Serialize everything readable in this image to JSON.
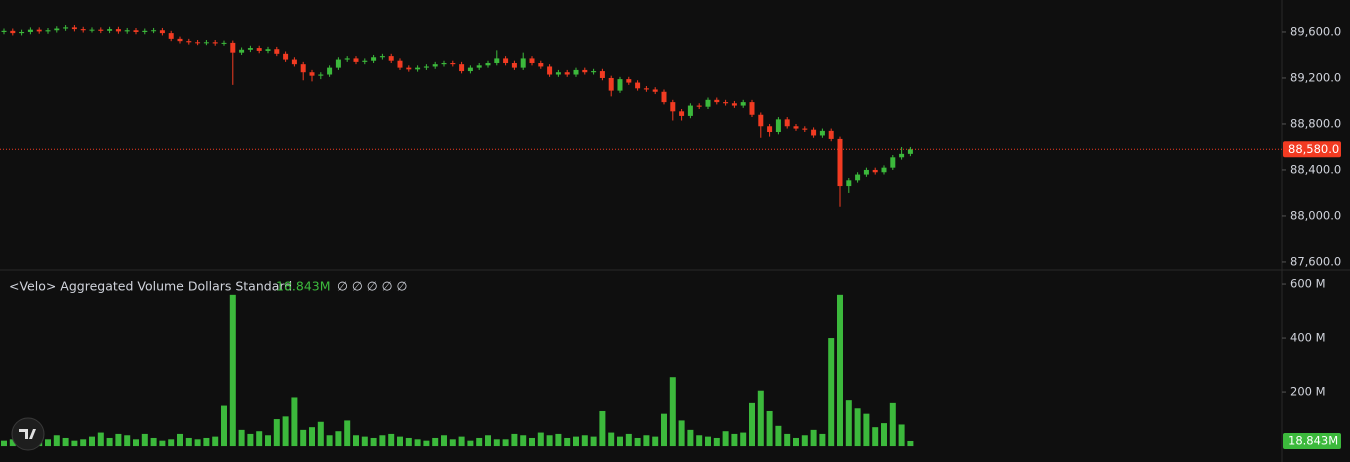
{
  "chart_data": [
    {
      "type": "candlestick",
      "up_color": "#3cb93c",
      "down_color": "#f23b22",
      "ylim": [
        87530,
        89878
      ],
      "yticks": [
        {
          "value": 87600,
          "label": "87,600.0"
        },
        {
          "value": 88000,
          "label": "88,000.0"
        },
        {
          "value": 88400,
          "label": "88,400.0"
        },
        {
          "value": 88800,
          "label": "88,800.0"
        },
        {
          "value": 89200,
          "label": "89,200.0"
        },
        {
          "value": 89600,
          "label": "89,600.0"
        }
      ],
      "last_price": {
        "value": 88580,
        "label": "88,580.0"
      },
      "open": [
        89600,
        89610,
        89590,
        89600,
        89620,
        89605,
        89615,
        89630,
        89640,
        89625,
        89615,
        89620,
        89610,
        89625,
        89605,
        89615,
        89600,
        89610,
        89615,
        89590,
        89540,
        89520,
        89510,
        89505,
        89510,
        89500,
        89505,
        89420,
        89445,
        89460,
        89435,
        89450,
        89410,
        89360,
        89320,
        89250,
        89220,
        89230,
        89290,
        89360,
        89370,
        89340,
        89350,
        89380,
        89390,
        89350,
        89290,
        89275,
        89290,
        89300,
        89320,
        89330,
        89320,
        89260,
        89290,
        89310,
        89330,
        89370,
        89330,
        89290,
        89370,
        89330,
        89300,
        89230,
        89250,
        89230,
        89270,
        89250,
        89260,
        89200,
        89090,
        89190,
        89160,
        89110,
        89100,
        89080,
        88990,
        88910,
        88870,
        88960,
        88950,
        89010,
        88990,
        88980,
        88960,
        88990,
        88880,
        88780,
        88730,
        88840,
        88780,
        88760,
        88750,
        88700,
        88740,
        88670,
        88260,
        88310,
        88360,
        88400,
        88380,
        88420,
        88510,
        88540
      ],
      "high": [
        89630,
        89630,
        89620,
        89640,
        89640,
        89635,
        89650,
        89660,
        89660,
        89645,
        89640,
        89640,
        89645,
        89645,
        89635,
        89635,
        89630,
        89635,
        89635,
        89610,
        89560,
        89540,
        89530,
        89530,
        89530,
        89525,
        89525,
        89465,
        89480,
        89480,
        89470,
        89470,
        89430,
        89380,
        89340,
        89270,
        89250,
        89310,
        89380,
        89390,
        89390,
        89370,
        89400,
        89410,
        89410,
        89370,
        89310,
        89310,
        89320,
        89340,
        89350,
        89350,
        89340,
        89310,
        89330,
        89350,
        89440,
        89390,
        89350,
        89420,
        89390,
        89350,
        89320,
        89270,
        89270,
        89290,
        89290,
        89280,
        89280,
        89220,
        89210,
        89210,
        89180,
        89130,
        89120,
        89100,
        89010,
        88930,
        88980,
        88980,
        89030,
        89030,
        89010,
        89000,
        89010,
        89010,
        88900,
        88800,
        88860,
        88860,
        88800,
        88780,
        88770,
        88760,
        88760,
        88690,
        88330,
        88380,
        88420,
        88420,
        88440,
        88530,
        88600,
        88600
      ],
      "low": [
        89580,
        89570,
        89570,
        89580,
        89585,
        89585,
        89595,
        89610,
        89605,
        89595,
        89595,
        89590,
        89590,
        89585,
        89585,
        89580,
        89580,
        89590,
        89570,
        89520,
        89500,
        89490,
        89485,
        89485,
        89480,
        89480,
        89140,
        89400,
        89425,
        89415,
        89415,
        89390,
        89340,
        89300,
        89180,
        89170,
        89190,
        89210,
        89270,
        89340,
        89320,
        89320,
        89330,
        89360,
        89330,
        89270,
        89255,
        89255,
        89270,
        89280,
        89300,
        89300,
        89240,
        89240,
        89270,
        89290,
        89310,
        89310,
        89270,
        89270,
        89310,
        89280,
        89210,
        89210,
        89210,
        89210,
        89230,
        89230,
        89180,
        89040,
        89070,
        89140,
        89090,
        89080,
        89060,
        88970,
        88830,
        88830,
        88850,
        88930,
        88930,
        88970,
        88960,
        88940,
        88940,
        88860,
        88680,
        88690,
        88710,
        88760,
        88740,
        88730,
        88680,
        88680,
        88650,
        88080,
        88200,
        88290,
        88340,
        88360,
        88360,
        88400,
        88490,
        88520
      ],
      "close": [
        89610,
        89590,
        89600,
        89620,
        89605,
        89615,
        89630,
        89640,
        89625,
        89615,
        89620,
        89610,
        89625,
        89605,
        89615,
        89600,
        89610,
        89615,
        89590,
        89540,
        89520,
        89510,
        89505,
        89510,
        89500,
        89505,
        89420,
        89445,
        89460,
        89435,
        89450,
        89410,
        89360,
        89320,
        89250,
        89220,
        89230,
        89290,
        89360,
        89370,
        89340,
        89350,
        89380,
        89390,
        89350,
        89290,
        89275,
        89290,
        89300,
        89320,
        89330,
        89320,
        89260,
        89290,
        89310,
        89330,
        89370,
        89330,
        89290,
        89370,
        89330,
        89300,
        89230,
        89250,
        89230,
        89270,
        89250,
        89260,
        89200,
        89090,
        89190,
        89160,
        89110,
        89100,
        89080,
        88990,
        88910,
        88870,
        88960,
        88950,
        89010,
        88990,
        88980,
        88960,
        88990,
        88880,
        88780,
        88730,
        88840,
        88780,
        88760,
        88750,
        88700,
        88740,
        88670,
        88260,
        88310,
        88360,
        88400,
        88380,
        88420,
        88510,
        88540,
        88580
      ]
    },
    {
      "type": "bar",
      "title": "<Velo> Aggregated Volume Dollars Standard",
      "last_value": 18.843,
      "last_value_label": "18.843M",
      "placeholders": "∅ ∅ ∅ ∅ ∅",
      "color": "#3cb93c",
      "ylim": [
        -59,
        652
      ],
      "yticks": [
        {
          "value": 200,
          "label": "200 M"
        },
        {
          "value": 400,
          "label": "400 M"
        },
        {
          "value": 600,
          "label": "600 M"
        }
      ],
      "values": [
        20,
        25,
        30,
        45,
        35,
        25,
        40,
        30,
        20,
        25,
        35,
        50,
        30,
        45,
        40,
        25,
        45,
        30,
        20,
        25,
        45,
        30,
        25,
        30,
        35,
        150,
        560,
        60,
        45,
        55,
        40,
        100,
        110,
        180,
        60,
        70,
        90,
        40,
        55,
        95,
        40,
        35,
        30,
        40,
        45,
        35,
        30,
        25,
        20,
        30,
        40,
        25,
        35,
        20,
        30,
        40,
        25,
        25,
        45,
        40,
        30,
        50,
        40,
        45,
        30,
        35,
        40,
        35,
        130,
        50,
        35,
        45,
        30,
        40,
        35,
        120,
        255,
        95,
        60,
        40,
        35,
        30,
        55,
        45,
        50,
        160,
        205,
        130,
        75,
        45,
        30,
        40,
        60,
        45,
        400,
        560,
        170,
        140,
        120,
        70,
        85,
        160,
        80,
        18.843
      ]
    }
  ]
}
